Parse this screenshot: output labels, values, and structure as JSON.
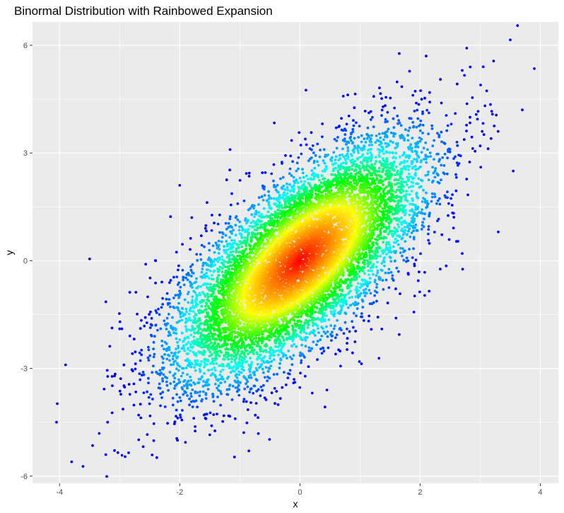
{
  "chart_data": {
    "type": "scatter",
    "title": "Binormal Distribution with Rainbowed Expansion",
    "xlabel": "x",
    "ylabel": "y",
    "xlim": [
      -4.45,
      4.3
    ],
    "ylim": [
      -6.2,
      6.65
    ],
    "x_ticks": [
      -4,
      -2,
      0,
      2,
      4
    ],
    "y_ticks": [
      -6,
      -3,
      0,
      3,
      6
    ],
    "x_tick_labels": [
      "-4",
      "-2",
      "0",
      "2",
      "4"
    ],
    "y_tick_labels": [
      "-6",
      "-3",
      "0",
      "3",
      "6"
    ],
    "grid": true,
    "background": "#ebebeb",
    "grid_color": "#ffffff",
    "legend": "none",
    "distribution": {
      "mean_x": 0,
      "mean_y": 0,
      "sd_x": 1,
      "sd_y": 1.6,
      "correlation": 0.7,
      "n_points": 10000
    },
    "color_scale": {
      "description": "rainbow by density: red at center through yellow, green, cyan to blue at the tails",
      "stops": [
        "#ff0000",
        "#ff8000",
        "#ffff00",
        "#00ff00",
        "#00ffff",
        "#0080ff",
        "#0000ff"
      ]
    },
    "outlier_points": [
      {
        "x": 3.5,
        "y": 6.15
      },
      {
        "x": 3.9,
        "y": 5.35
      },
      {
        "x": 2.1,
        "y": 5.7
      },
      {
        "x": 3.05,
        "y": 5.4
      },
      {
        "x": 2.7,
        "y": 5.3
      },
      {
        "x": 0.1,
        "y": 4.75
      },
      {
        "x": -3.5,
        "y": 0.05
      },
      {
        "x": -2.0,
        "y": 2.1
      },
      {
        "x": 3.3,
        "y": 0.8
      },
      {
        "x": 2.7,
        "y": 0.2
      },
      {
        "x": 3.7,
        "y": 4.2
      },
      {
        "x": 3.55,
        "y": 2.5
      },
      {
        "x": -4.05,
        "y": -4.5
      },
      {
        "x": -3.8,
        "y": -5.6
      },
      {
        "x": -3.9,
        "y": -2.9
      },
      {
        "x": -3.45,
        "y": -5.15
      },
      {
        "x": -2.85,
        "y": -5.35
      },
      {
        "x": -0.85,
        "y": -5.3
      },
      {
        "x": -2.05,
        "y": -4.95
      },
      {
        "x": -1.5,
        "y": -4.85
      },
      {
        "x": -3.2,
        "y": -4.5
      },
      {
        "x": 0.45,
        "y": -3.6
      },
      {
        "x": 2.15,
        "y": -0.85
      },
      {
        "x": -2.4,
        "y": 0.0
      },
      {
        "x": -3.0,
        "y": -1.9
      },
      {
        "x": -1.8,
        "y": 1.2
      }
    ]
  }
}
